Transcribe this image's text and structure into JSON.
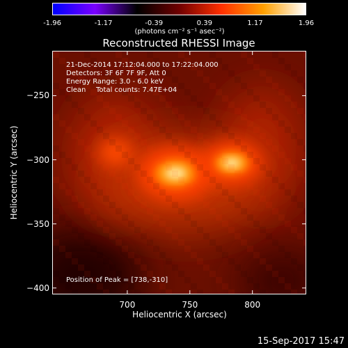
{
  "colorbar": {
    "ticks": [
      "-1.96",
      "-1.17",
      "-0.39",
      "0.39",
      "1.17",
      "1.96"
    ],
    "tick_values": [
      -1.96,
      -1.17,
      -0.39,
      0.39,
      1.17,
      1.96
    ],
    "range": [
      -1.96,
      1.96
    ],
    "unit": "(photons cm⁻² s⁻¹ asec⁻²)",
    "colors": [
      "#0000ff",
      "#7a00ff",
      "#000000",
      "#700000",
      "#ff3000",
      "#ffa000",
      "#ffffff"
    ]
  },
  "chart_data": {
    "type": "heatmap",
    "title": "Reconstructed RHESSI Image",
    "xlabel": "Heliocentric X (arcsec)",
    "ylabel": "Heliocentric Y (arcsec)",
    "xlim": [
      640,
      843
    ],
    "ylim": [
      -405,
      -215
    ],
    "x_ticks": [
      700,
      750,
      800
    ],
    "y_ticks": [
      -250,
      -300,
      -350,
      -400
    ],
    "colormap": "rhessi-heat",
    "sources": [
      {
        "x": 738,
        "y": -310,
        "peak": 1.96
      },
      {
        "x": 783,
        "y": -302,
        "peak": 1.6
      }
    ],
    "annotations": {
      "time_range": "21-Dec-2014 17:12:04.000 to 17:22:04.000",
      "detectors": "Detectors: 3F 6F 7F 9F, Att 0",
      "energy": "Energy Range: 3.0 - 6.0 keV",
      "method": "Clean",
      "counts": "Total counts: 7.47E+04",
      "peak": "Position of Peak = [738,-310]"
    }
  },
  "timestamp": "15-Sep-2017 15:47"
}
